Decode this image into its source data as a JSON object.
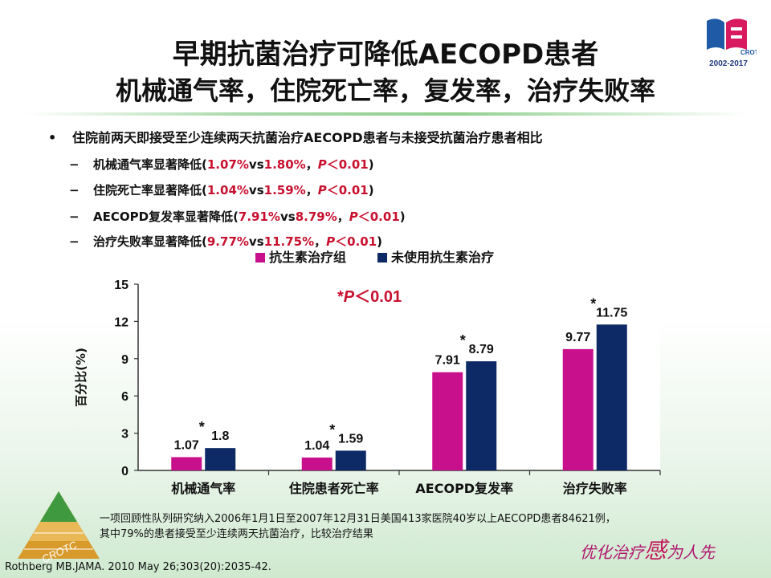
{
  "title": {
    "line1": "早期抗菌治疗可降低AECOPD患者",
    "line2": "机械通气率，住院死亡率，复发率，治疗失败率"
  },
  "bullet": "住院前两天即接受至少连续两天抗菌治疗AECOPD患者与未接受抗菌治疗患者相比",
  "subpoints": [
    {
      "text": "机械通气率显著降低",
      "v1": "1.07%",
      "v2": "1.80%"
    },
    {
      "text": "住院死亡率显著降低",
      "v1": "1.04%",
      "v2": "1.59%"
    },
    {
      "text": "AECOPD复发率显著降低",
      "v1": "7.91%",
      "v2": "8.79%"
    },
    {
      "text": "治疗失败率显著降低",
      "v1": "9.77%",
      "v2": "11.75%"
    }
  ],
  "sub_common": {
    "open": "(",
    "vs": "vs",
    "comma": "，",
    "p": "P",
    "p_rest": "＜0.01",
    "close": ")"
  },
  "logo": {
    "text": "CROTC",
    "years": "2002-2017"
  },
  "chart_data": {
    "type": "bar",
    "categories": [
      "机械通气率",
      "住院患者死亡率",
      "AECOPD复发率",
      "治疗失败率"
    ],
    "series": [
      {
        "name": "抗生素治疗组",
        "values": [
          1.07,
          1.04,
          7.91,
          9.77
        ],
        "color": "#c8108c"
      },
      {
        "name": "未使用抗生素治疗",
        "values": [
          1.8,
          1.59,
          8.79,
          11.75
        ],
        "color": "#0d2a66"
      }
    ],
    "value_labels": [
      [
        "1.07",
        "1.04",
        "7.91",
        "9.77"
      ],
      [
        "1.8",
        "1.59",
        "8.79",
        "11.75"
      ]
    ],
    "significance_marker": "*",
    "annotation": {
      "star": "*",
      "p": "P",
      "rest": "＜0.01"
    },
    "ylabel": "百分比(%)",
    "yticks": [
      0,
      3,
      6,
      9,
      12,
      15
    ],
    "ylim": [
      0,
      15
    ],
    "grid": false,
    "legend_position": "top"
  },
  "footnote": {
    "line1": "一项回顾性队列研究纳入2006年1月1日至2007年12月31日美国413家医院40岁以上AECOPD患者84621例，",
    "line2": "其中79%的患者接受至少连续两天抗菌治疗，比较治疗结果"
  },
  "citation": "Rothberg MB.JAMA. 2010 May 26;303(20):2035-42.",
  "slogan": {
    "before": "优化治疗",
    "big": "感",
    "after": "为人先"
  },
  "pyramid_label": "CROTC"
}
